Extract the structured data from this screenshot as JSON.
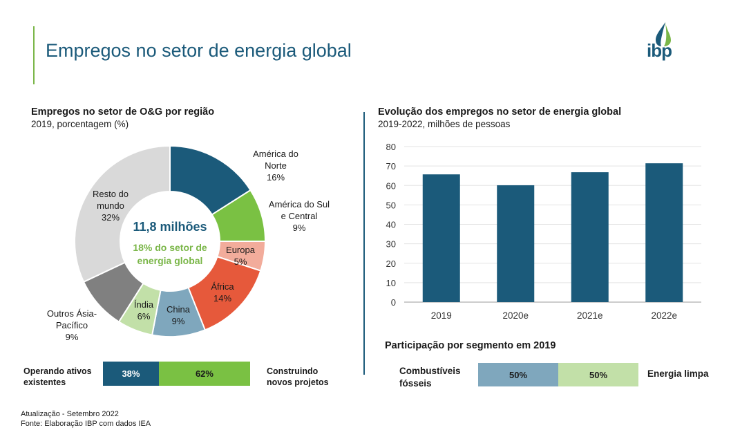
{
  "page_title": "Empregos no setor de energia global",
  "logo_text": "ibp",
  "left_section": {
    "title": "Empregos no setor de O&G por região",
    "subtitle": "2019, porcentagem (%)",
    "center_value": "11,8 milhões",
    "center_line1": "18% do setor de",
    "center_line2": "energia global"
  },
  "chart_data": [
    {
      "type": "pie",
      "title": "Empregos no setor de O&G por região",
      "subtitle": "2019, porcentagem (%)",
      "slices": [
        {
          "label": "América do Norte",
          "value": 16,
          "color": "#1b5a7a"
        },
        {
          "label": "América do Sul e Central",
          "value": 9,
          "color": "#7ac143"
        },
        {
          "label": "Europa",
          "value": 5,
          "color": "#f2ac9b"
        },
        {
          "label": "África",
          "value": 14,
          "color": "#e6593b"
        },
        {
          "label": "China",
          "value": 9,
          "color": "#7fa7bd"
        },
        {
          "label": "Índia",
          "value": 6,
          "color": "#c2e0a8"
        },
        {
          "label": "Outros Ásia-Pacífico",
          "value": 9,
          "color": "#808080"
        },
        {
          "label": "Resto do mundo",
          "value": 32,
          "color": "#d9d9d9"
        }
      ]
    },
    {
      "type": "bar",
      "title": "Evolução dos empregos no setor de energia global",
      "subtitle": "2019-2022, milhões de pessoas",
      "categories": [
        "2019",
        "2020e",
        "2021e",
        "2022e"
      ],
      "values": [
        65.7,
        60.1,
        66.8,
        71.4
      ],
      "yticks": [
        "0",
        "10",
        "20",
        "30",
        "40",
        "50",
        "60",
        "70",
        "80"
      ],
      "ylim": [
        0,
        80
      ],
      "color": "#1b5a7a"
    }
  ],
  "donut_labels": {
    "na": {
      "l1": "América do",
      "l2": "Norte",
      "pct": "16%"
    },
    "sa": {
      "l1": "América do Sul",
      "l2": "e Central",
      "pct": "9%"
    },
    "eu": {
      "l1": "Europa",
      "pct": "5%"
    },
    "af": {
      "l1": "África",
      "pct": "14%"
    },
    "cn": {
      "l1": "China",
      "pct": "9%"
    },
    "in": {
      "l1": "Índia",
      "pct": "6%"
    },
    "ap": {
      "l1": "Outros Ásia-",
      "l2": "Pacífico",
      "pct": "9%"
    },
    "rw": {
      "l1": "Resto do",
      "l2": "mundo",
      "pct": "32%"
    }
  },
  "ops_bar": {
    "left_label_1": "Operando ativos",
    "left_label_2": "existentes",
    "seg1": "38%",
    "seg1_value": 38,
    "seg1_color": "#1b5a7a",
    "seg2": "62%",
    "seg2_value": 62,
    "seg2_color": "#7ac143",
    "right_label_1": "Construindo",
    "right_label_2": "novos projetos"
  },
  "segment": {
    "title": "Participação por segmento em 2019",
    "left_label_1": "Combustíveis",
    "left_label_2": "fósseis",
    "seg1": "50%",
    "seg1_value": 50,
    "seg1_color": "#7fa7bd",
    "seg2": "50%",
    "seg2_value": 50,
    "seg2_color": "#c2e0a8",
    "right_label": "Energia limpa"
  },
  "footer": {
    "line1": "Atualização - Setembro 2022",
    "line2": "Fonte: Elaboração IBP com dados IEA"
  }
}
